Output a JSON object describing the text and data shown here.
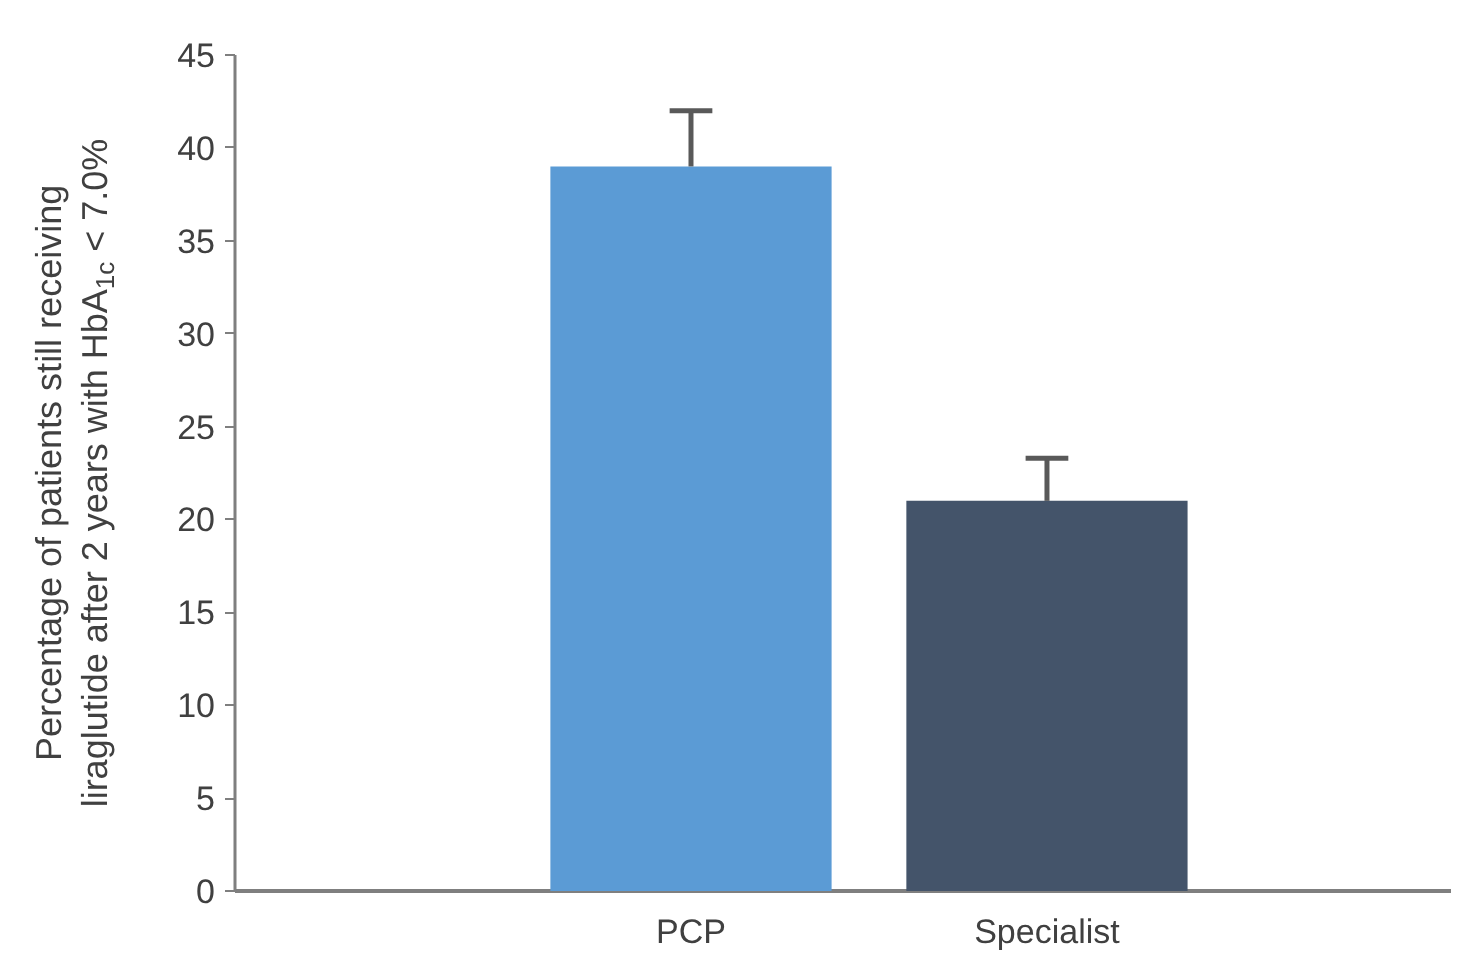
{
  "chart_data": {
    "type": "bar",
    "ylabel": "Percentage of patients still receiving\nliraglutide after 2 years with HbA$_{1c}$ < 7.0%",
    "categories": [
      "PCP",
      "Specialist"
    ],
    "values": [
      39,
      21
    ],
    "colors": [
      "#5b9bd5",
      "#44546a"
    ],
    "errors": [
      [
        39,
        42
      ],
      [
        21,
        23.3
      ]
    ],
    "ylim": [
      0,
      45
    ],
    "yticks": [
      0,
      5,
      10,
      15,
      20,
      25,
      30,
      35,
      40,
      45
    ],
    "grid": false
  }
}
